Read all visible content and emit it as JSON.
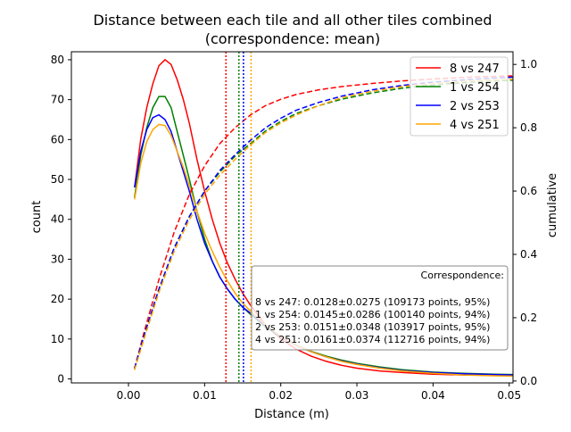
{
  "chart_data": {
    "type": "line",
    "title_line1": "Distance between each tile and all other tiles combined",
    "title_line2": "(correspondence: mean)",
    "xlabel": "Distance (m)",
    "ylabel": "count",
    "ylabel_right": "cumulative",
    "xlim": [
      -0.0075,
      0.0505
    ],
    "ylim": [
      -1,
      82
    ],
    "ylim_right": [
      -0.006,
      1.04
    ],
    "xticks": [
      0.0,
      0.01,
      0.02,
      0.03,
      0.04,
      0.05
    ],
    "xtick_labels": [
      "0.00",
      "0.01",
      "0.02",
      "0.03",
      "0.04",
      "0.05"
    ],
    "yticks": [
      0,
      10,
      20,
      30,
      40,
      50,
      60,
      70,
      80
    ],
    "yticks_right": [
      0.0,
      0.2,
      0.4,
      0.6,
      0.8,
      1.0
    ],
    "ytick_right_labels": [
      "0.0",
      "0.2",
      "0.4",
      "0.6",
      "0.8",
      "1.0"
    ],
    "grid": false,
    "legend_position": "top-right",
    "series": [
      {
        "name": "8 vs 247",
        "color": "#ff0000",
        "mean": 0.0128,
        "histogram": {
          "x": [
            0.0008,
            0.0016,
            0.0024,
            0.0032,
            0.004,
            0.0048,
            0.0056,
            0.0064,
            0.0072,
            0.008,
            0.009,
            0.01,
            0.011,
            0.012,
            0.013,
            0.014,
            0.015,
            0.016,
            0.018,
            0.02,
            0.022,
            0.024,
            0.026,
            0.028,
            0.03,
            0.033,
            0.036,
            0.04,
            0.044,
            0.048,
            0.0505
          ],
          "y": [
            48,
            60,
            68,
            74,
            78.5,
            80,
            78.8,
            75,
            70,
            64,
            55,
            47,
            40,
            34,
            29,
            25,
            21.5,
            18.5,
            13.5,
            10,
            7.5,
            5.7,
            4.4,
            3.4,
            2.7,
            2.0,
            1.6,
            1.2,
            1.0,
            0.9,
            0.8
          ]
        },
        "cumulative": {
          "x": [
            0.0008,
            0.002,
            0.004,
            0.006,
            0.008,
            0.01,
            0.012,
            0.014,
            0.016,
            0.018,
            0.02,
            0.022,
            0.025,
            0.028,
            0.032,
            0.036,
            0.04,
            0.045,
            0.0505
          ],
          "y": [
            0.04,
            0.15,
            0.32,
            0.47,
            0.59,
            0.68,
            0.75,
            0.8,
            0.84,
            0.87,
            0.89,
            0.905,
            0.92,
            0.93,
            0.94,
            0.948,
            0.954,
            0.96,
            0.964
          ]
        }
      },
      {
        "name": "1 vs 254",
        "color": "#008000",
        "mean": 0.0145,
        "histogram": {
          "x": [
            0.0008,
            0.0016,
            0.0024,
            0.0032,
            0.004,
            0.0048,
            0.0056,
            0.0064,
            0.0072,
            0.008,
            0.009,
            0.01,
            0.011,
            0.012,
            0.013,
            0.014,
            0.015,
            0.016,
            0.018,
            0.02,
            0.022,
            0.024,
            0.026,
            0.028,
            0.03,
            0.033,
            0.036,
            0.04,
            0.044,
            0.048,
            0.0505
          ],
          "y": [
            45.5,
            56,
            63,
            68,
            70.8,
            70.8,
            68,
            62,
            56,
            50,
            42,
            35,
            29.5,
            25.5,
            22.5,
            20,
            18,
            16.2,
            13,
            10.5,
            8.5,
            6.9,
            5.7,
            4.7,
            3.9,
            3.0,
            2.3,
            1.7,
            1.4,
            1.2,
            1.1
          ]
        },
        "cumulative": {
          "x": [
            0.0008,
            0.002,
            0.004,
            0.006,
            0.008,
            0.01,
            0.012,
            0.014,
            0.016,
            0.018,
            0.02,
            0.022,
            0.025,
            0.028,
            0.032,
            0.036,
            0.04,
            0.045,
            0.0505
          ],
          "y": [
            0.04,
            0.14,
            0.29,
            0.42,
            0.52,
            0.6,
            0.66,
            0.71,
            0.75,
            0.79,
            0.82,
            0.845,
            0.87,
            0.89,
            0.91,
            0.925,
            0.935,
            0.944,
            0.95
          ]
        }
      },
      {
        "name": "2 vs 253",
        "color": "#0000ff",
        "mean": 0.0151,
        "histogram": {
          "x": [
            0.0008,
            0.0016,
            0.0024,
            0.0032,
            0.004,
            0.0048,
            0.0056,
            0.0064,
            0.0072,
            0.008,
            0.009,
            0.01,
            0.011,
            0.012,
            0.013,
            0.014,
            0.015,
            0.016,
            0.018,
            0.02,
            0.022,
            0.024,
            0.026,
            0.028,
            0.03,
            0.033,
            0.036,
            0.04,
            0.044,
            0.048,
            0.0505
          ],
          "y": [
            48,
            57,
            62.5,
            65.5,
            66.2,
            65,
            62,
            57,
            52,
            47,
            40,
            34,
            29.5,
            25.5,
            22.5,
            20,
            18,
            16.5,
            13.2,
            10.5,
            8.4,
            6.8,
            5.5,
            4.5,
            3.7,
            2.8,
            2.1,
            1.6,
            1.3,
            1.1,
            1.0
          ]
        },
        "cumulative": {
          "x": [
            0.0008,
            0.002,
            0.004,
            0.006,
            0.008,
            0.01,
            0.012,
            0.014,
            0.016,
            0.018,
            0.02,
            0.022,
            0.025,
            0.028,
            0.032,
            0.036,
            0.04,
            0.045,
            0.0505
          ],
          "y": [
            0.04,
            0.14,
            0.29,
            0.42,
            0.52,
            0.6,
            0.665,
            0.715,
            0.76,
            0.8,
            0.83,
            0.855,
            0.88,
            0.9,
            0.92,
            0.934,
            0.944,
            0.953,
            0.96
          ]
        }
      },
      {
        "name": "4 vs 251",
        "color": "#ffa500",
        "mean": 0.0161,
        "histogram": {
          "x": [
            0.0008,
            0.0016,
            0.0024,
            0.0032,
            0.004,
            0.0048,
            0.0056,
            0.0064,
            0.0072,
            0.008,
            0.009,
            0.01,
            0.011,
            0.012,
            0.013,
            0.014,
            0.015,
            0.016,
            0.018,
            0.02,
            0.022,
            0.024,
            0.026,
            0.028,
            0.03,
            0.033,
            0.036,
            0.04,
            0.044,
            0.048,
            0.0505
          ],
          "y": [
            45,
            54,
            59.5,
            62.5,
            63.8,
            63.5,
            61,
            57,
            53,
            48.5,
            42,
            36.5,
            32,
            28,
            24.5,
            21.5,
            19,
            17,
            13.5,
            10.7,
            8.5,
            6.8,
            5.5,
            4.4,
            3.6,
            2.7,
            2.0,
            1.4,
            1.0,
            0.8,
            0.7
          ]
        },
        "cumulative": {
          "x": [
            0.0008,
            0.002,
            0.004,
            0.006,
            0.008,
            0.01,
            0.012,
            0.014,
            0.016,
            0.018,
            0.02,
            0.022,
            0.025,
            0.028,
            0.032,
            0.036,
            0.04,
            0.045,
            0.0505
          ],
          "y": [
            0.035,
            0.13,
            0.28,
            0.41,
            0.51,
            0.59,
            0.65,
            0.7,
            0.745,
            0.785,
            0.815,
            0.84,
            0.87,
            0.895,
            0.915,
            0.93,
            0.94,
            0.948,
            0.953
          ]
        }
      }
    ],
    "annotation": {
      "title": "Correspondence:",
      "lines": [
        "8 vs 247: 0.0128±0.0275 (109173 points, 95%)",
        "1 vs 254: 0.0145±0.0286 (100140 points, 94%)",
        "2 vs 253: 0.0151±0.0348 (103917 points, 95%)",
        "4 vs 251: 0.0161±0.0374 (112716 points, 94%)"
      ]
    }
  }
}
